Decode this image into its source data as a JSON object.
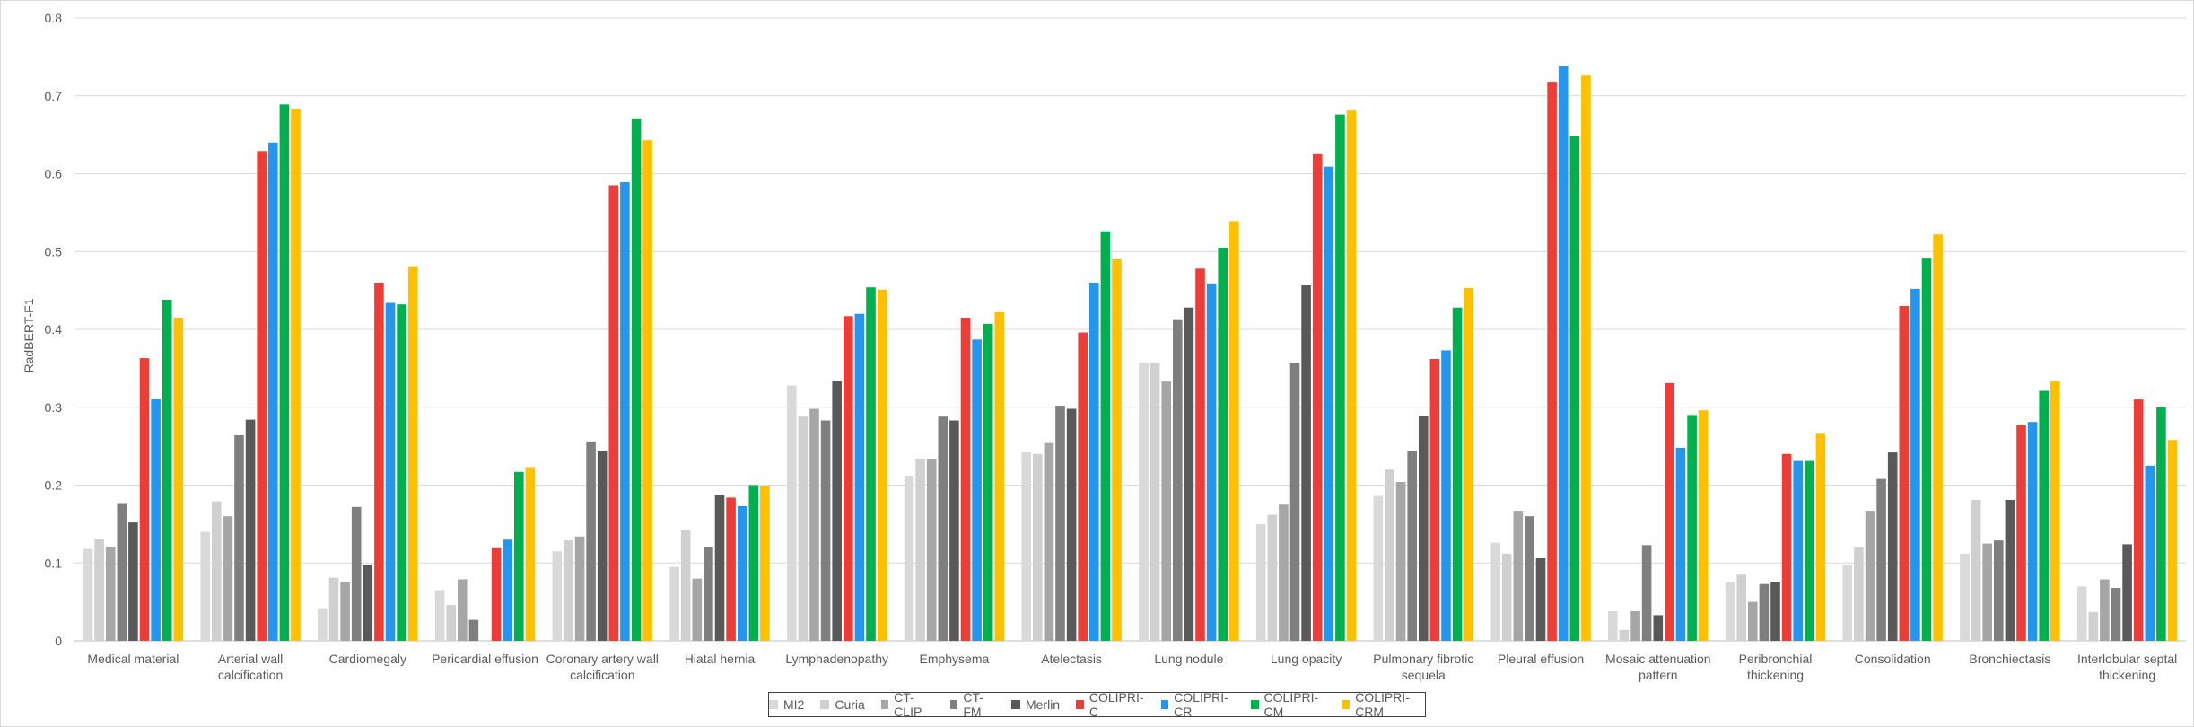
{
  "chart_data": {
    "type": "bar",
    "title": "",
    "xlabel": "",
    "ylabel": "RadBERT-F1",
    "ylim": [
      0,
      0.8
    ],
    "yticks": [
      "0",
      "0.1",
      "0.2",
      "0.3",
      "0.4",
      "0.5",
      "0.6",
      "0.7",
      "0.8"
    ],
    "grid": true,
    "legend_position": "bottom",
    "categories": [
      "Medical material",
      "Arterial wall calcification",
      "Cardiomegaly",
      "Pericardial effusion",
      "Coronary artery wall calcification",
      "Hiatal hernia",
      "Lymphadenopathy",
      "Emphysema",
      "Atelectasis",
      "Lung nodule",
      "Lung opacity",
      "Pulmonary fibrotic sequela",
      "Pleural effusion",
      "Mosaic attenuation pattern",
      "Peribronchial thickening",
      "Consolidation",
      "Bronchiectasis",
      "Interlobular septal thickening"
    ],
    "category_lines": [
      [
        "Medical material"
      ],
      [
        "Arterial wall",
        "calcification"
      ],
      [
        "Cardiomegaly"
      ],
      [
        "Pericardial effusion"
      ],
      [
        "Coronary artery wall",
        "calcification"
      ],
      [
        "Hiatal hernia"
      ],
      [
        "Lymphadenopathy"
      ],
      [
        "Emphysema"
      ],
      [
        "Atelectasis"
      ],
      [
        "Lung nodule"
      ],
      [
        "Lung opacity"
      ],
      [
        "Pulmonary fibrotic",
        "sequela"
      ],
      [
        "Pleural effusion"
      ],
      [
        "Mosaic attenuation",
        "pattern"
      ],
      [
        "Peribronchial",
        "thickening"
      ],
      [
        "Consolidation"
      ],
      [
        "Bronchiectasis"
      ],
      [
        "Interlobular septal",
        "thickening"
      ]
    ],
    "series": [
      {
        "name": "MI2",
        "color": "#d9d9d9",
        "values": [
          0.118,
          0.14,
          0.042,
          0.065,
          0.115,
          0.095,
          0.328,
          0.212,
          0.242,
          0.357,
          0.15,
          0.186,
          0.126,
          0.038,
          0.075,
          0.098,
          0.112,
          0.07
        ]
      },
      {
        "name": "Curia",
        "color": "#d0d0d0",
        "values": [
          0.131,
          0.179,
          0.081,
          0.046,
          0.129,
          0.142,
          0.288,
          0.234,
          0.24,
          0.357,
          0.162,
          0.22,
          0.112,
          0.014,
          0.085,
          0.12,
          0.181,
          0.037
        ]
      },
      {
        "name": "CT-CLIP",
        "color": "#a6a6a6",
        "values": [
          0.121,
          0.16,
          0.075,
          0.079,
          0.134,
          0.08,
          0.298,
          0.234,
          0.254,
          0.333,
          0.175,
          0.204,
          0.167,
          0.038,
          0.05,
          0.167,
          0.125,
          0.079
        ]
      },
      {
        "name": "CT-FM",
        "color": "#7f7f7f",
        "values": [
          0.177,
          0.264,
          0.172,
          0.027,
          0.256,
          0.12,
          0.283,
          0.288,
          0.302,
          0.413,
          0.357,
          0.244,
          0.16,
          0.123,
          0.073,
          0.208,
          0.129,
          0.068
        ]
      },
      {
        "name": "Merlin",
        "color": "#595959",
        "values": [
          0.152,
          0.284,
          0.098,
          0.0,
          0.244,
          0.187,
          0.334,
          0.283,
          0.298,
          0.428,
          0.457,
          0.289,
          0.106,
          0.033,
          0.075,
          0.242,
          0.181,
          0.124
        ]
      },
      {
        "name": "COLIPRI-C",
        "color": "#ee3d37",
        "values": [
          0.363,
          0.629,
          0.46,
          0.119,
          0.585,
          0.184,
          0.417,
          0.415,
          0.396,
          0.478,
          0.625,
          0.362,
          0.718,
          0.331,
          0.24,
          0.43,
          0.277,
          0.31
        ]
      },
      {
        "name": "COLIPRI-CR",
        "color": "#2596ee",
        "values": [
          0.311,
          0.64,
          0.434,
          0.13,
          0.589,
          0.173,
          0.42,
          0.387,
          0.46,
          0.459,
          0.609,
          0.373,
          0.738,
          0.248,
          0.231,
          0.452,
          0.281,
          0.225
        ]
      },
      {
        "name": "COLIPRI-CM",
        "color": "#00b04f",
        "values": [
          0.438,
          0.689,
          0.432,
          0.217,
          0.67,
          0.2,
          0.454,
          0.407,
          0.526,
          0.505,
          0.676,
          0.428,
          0.648,
          0.29,
          0.231,
          0.491,
          0.321,
          0.3
        ]
      },
      {
        "name": "COLIPRI-CRM",
        "color": "#ffc000",
        "values": [
          0.415,
          0.683,
          0.481,
          0.223,
          0.643,
          0.199,
          0.451,
          0.422,
          0.49,
          0.539,
          0.681,
          0.453,
          0.726,
          0.296,
          0.267,
          0.522,
          0.334,
          0.258
        ]
      }
    ]
  }
}
